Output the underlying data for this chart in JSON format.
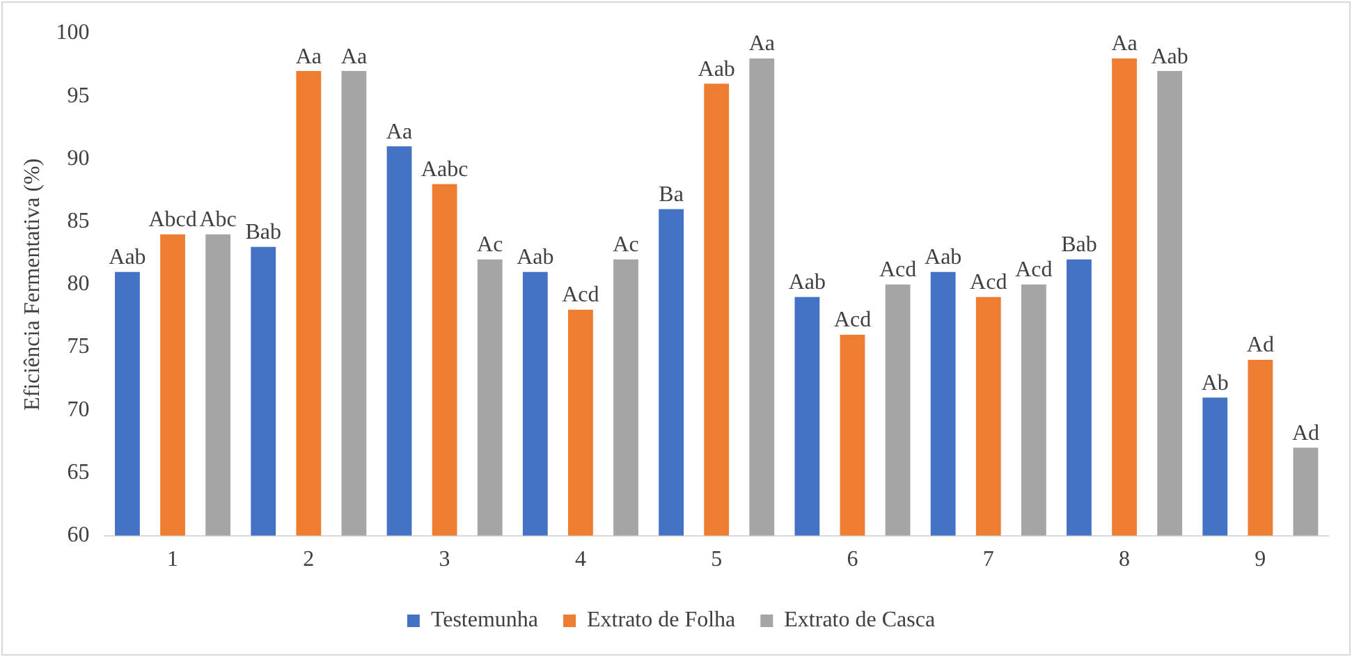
{
  "chart_data": {
    "type": "bar",
    "ylabel": "Eficiência Fermentativa (%)",
    "categories": [
      "1",
      "2",
      "3",
      "4",
      "5",
      "6",
      "7",
      "8",
      "9"
    ],
    "series": [
      {
        "name": "Testemunha",
        "color": "#4472c4",
        "values": [
          81,
          83,
          91,
          81,
          86,
          79,
          81,
          82,
          71
        ],
        "value_labels": [
          "Aab",
          "Bab",
          "Aa",
          "Aab",
          "Ba",
          "Aab",
          "Aab",
          "Bab",
          "Ab"
        ]
      },
      {
        "name": "Extrato de Folha",
        "color": "#ed7d31",
        "values": [
          84,
          97,
          88,
          78,
          96,
          76,
          79,
          98,
          74
        ],
        "value_labels": [
          "Abcd",
          "Aa",
          "Aabc",
          "Acd",
          "Aab",
          "Acd",
          "Acd",
          "Aa",
          "Ad"
        ]
      },
      {
        "name": "Extrato de Casca",
        "color": "#a5a5a5",
        "values": [
          84,
          97,
          82,
          82,
          98,
          80,
          80,
          97,
          67
        ],
        "value_labels": [
          "Abc",
          "Aa",
          "Ac",
          "Ac",
          "Aa",
          "Acd",
          "Acd",
          "Aab",
          "Ad"
        ]
      }
    ],
    "ylim": [
      60,
      100
    ],
    "yticks": [
      60,
      65,
      70,
      75,
      80,
      85,
      90,
      95,
      100
    ],
    "grid": false,
    "legend": "bottom"
  }
}
